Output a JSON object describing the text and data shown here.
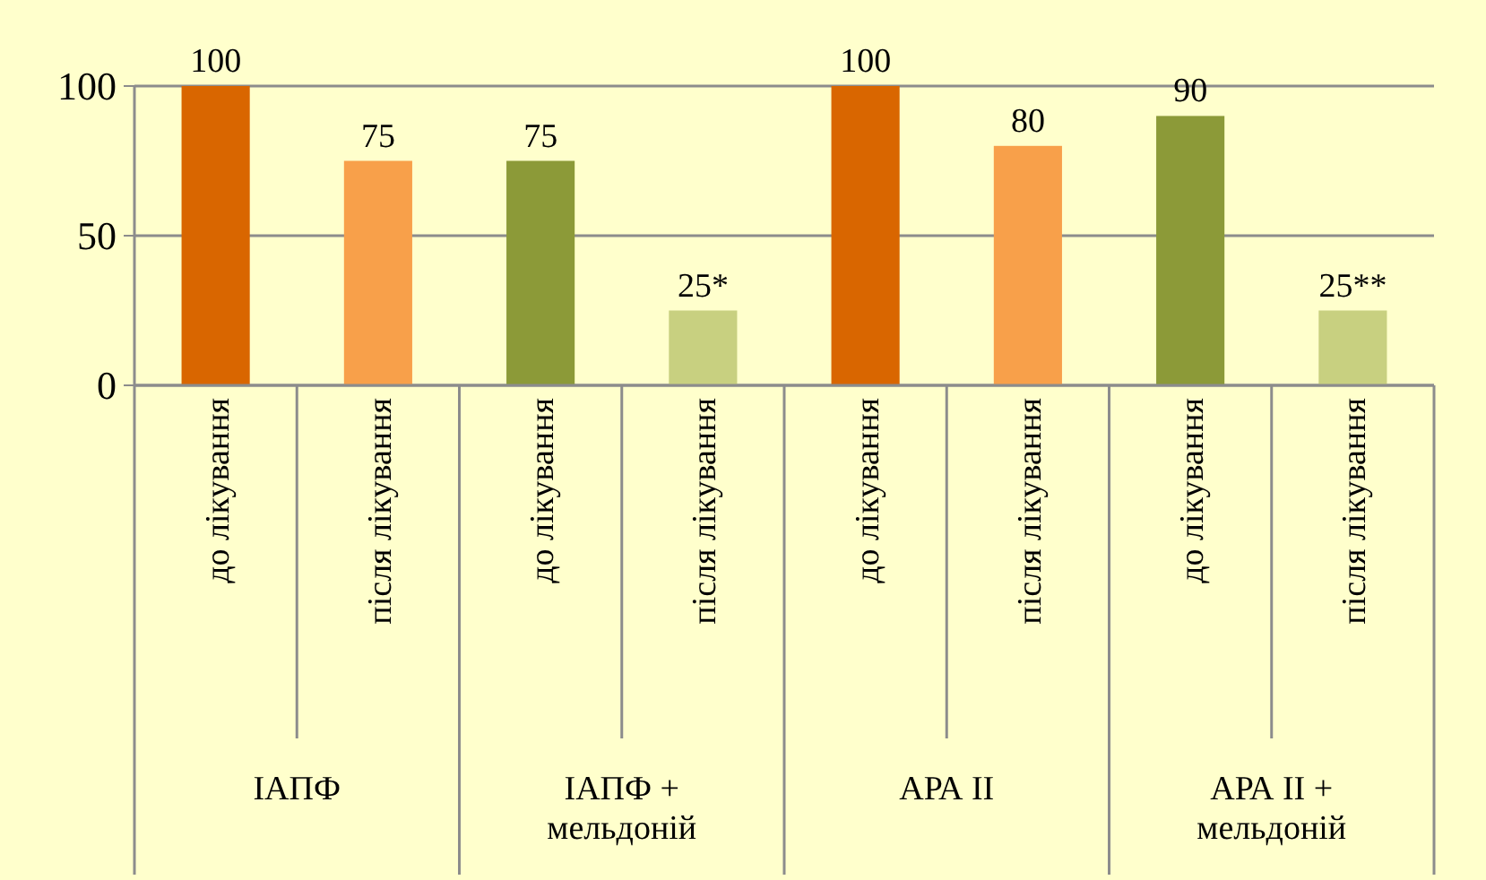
{
  "chart_data": {
    "type": "bar",
    "categories": [
      "до лікування",
      "після лікування",
      "до лікування",
      "після лікування",
      "до лікування",
      "після лікування",
      "до лікування",
      "після лікування"
    ],
    "values": [
      100,
      75,
      75,
      25,
      100,
      80,
      90,
      25
    ],
    "colors": [
      "#d96600",
      "#f8a04a",
      "#8c9a38",
      "#c8d080",
      "#d96600",
      "#f8a04a",
      "#8c9a38",
      "#c8d080"
    ],
    "value_labels": [
      "100",
      "75",
      "75",
      "25*",
      "100",
      "80",
      "90",
      "25**"
    ],
    "annotations": [
      "ІАПФ",
      "ІАПФ + мельдоній",
      "АРА II",
      "АРА II + мельдоній"
    ],
    "ylim": [
      0,
      100
    ],
    "yticks": [
      0,
      50,
      100
    ],
    "grid": "y"
  }
}
